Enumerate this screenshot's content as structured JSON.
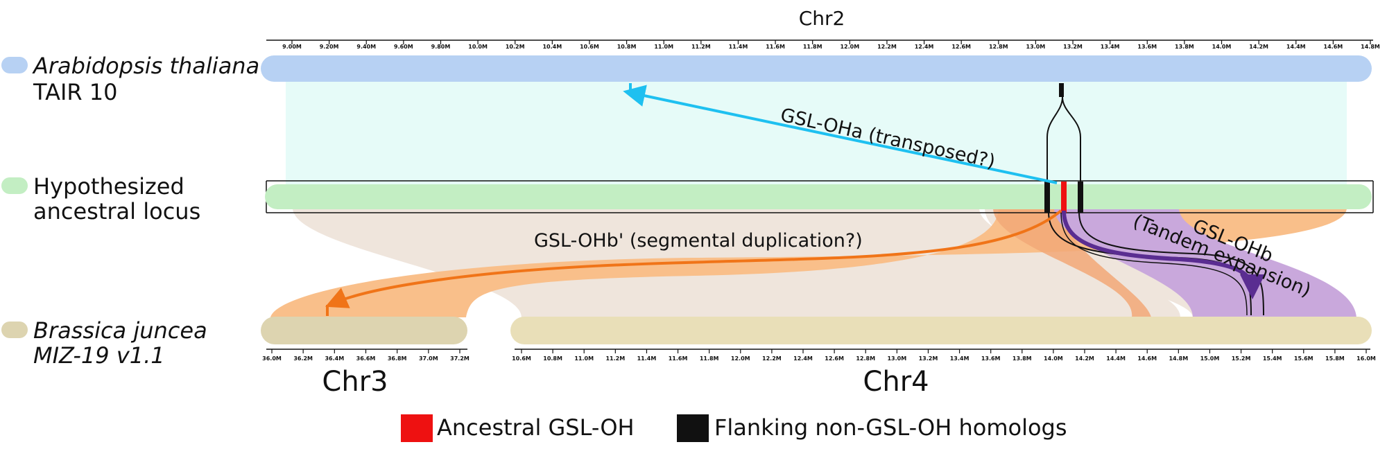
{
  "top_axis": {
    "chromosome": "Chr2",
    "ticks": [
      "9.00M",
      "9.20M",
      "9.40M",
      "9.60M",
      "9.80M",
      "10.0M",
      "10.2M",
      "10.4M",
      "10.6M",
      "10.8M",
      "11.0M",
      "11.2M",
      "11.4M",
      "11.6M",
      "11.8M",
      "12.0M",
      "12.2M",
      "12.4M",
      "12.6M",
      "12.8M",
      "13.0M",
      "13.2M",
      "13.4M",
      "13.6M",
      "13.8M",
      "14.0M",
      "14.2M",
      "14.4M",
      "14.6M",
      "14.8M"
    ]
  },
  "tracks": {
    "arabidopsis": {
      "line1": "Arabidopsis thaliana",
      "line2": "TAIR 10",
      "color": "#b7d1f3"
    },
    "ancestral": {
      "line1": "Hypothesized",
      "line2": "ancestral locus",
      "color": "#c3eec3"
    },
    "brassica": {
      "line1": "Brassica juncea",
      "line2": "MIZ-19 v1.1",
      "color": "#ddd4b0"
    }
  },
  "bottom_axes": {
    "chr3": {
      "label": "Chr3",
      "ticks": [
        "36.0M",
        "36.2M",
        "36.4M",
        "36.6M",
        "36.8M",
        "37.0M",
        "37.2M"
      ]
    },
    "chr4": {
      "label": "Chr4",
      "ticks": [
        "10.6M",
        "10.8M",
        "11.0M",
        "11.2M",
        "11.4M",
        "11.6M",
        "11.8M",
        "12.0M",
        "12.2M",
        "12.4M",
        "12.6M",
        "12.8M",
        "13.0M",
        "13.2M",
        "13.4M",
        "13.6M",
        "13.8M",
        "14.0M",
        "14.2M",
        "14.4M",
        "14.6M",
        "14.8M",
        "15.0M",
        "15.2M",
        "15.4M",
        "15.6M",
        "15.8M",
        "16.0M"
      ]
    }
  },
  "annotations": {
    "gsl_oha": "GSL-OHa (transposed?)",
    "gsl_ohb_prime": "GSL-OHb' (segmental duplication?)",
    "gsl_ohb_line1": "GSL-OHb",
    "gsl_ohb_line2": "(Tandem expansion)"
  },
  "colors": {
    "arrow_oha": "#1ec0f0",
    "arrow_ohb_prime": "#f07418",
    "arrow_ohb": "#5a2d91",
    "ribbon_cyan": "#e6fbf8",
    "ribbon_tan": "#efe5dc",
    "ribbon_orange": "#f9bf8a",
    "ribbon_purple": "#c9a8dc",
    "ancestral_gene": "#ee1111",
    "flanking_gene": "#111111"
  },
  "legend": {
    "ancestral": "Ancestral GSL-OH",
    "flanking": "Flanking non-GSL-OH homologs"
  }
}
